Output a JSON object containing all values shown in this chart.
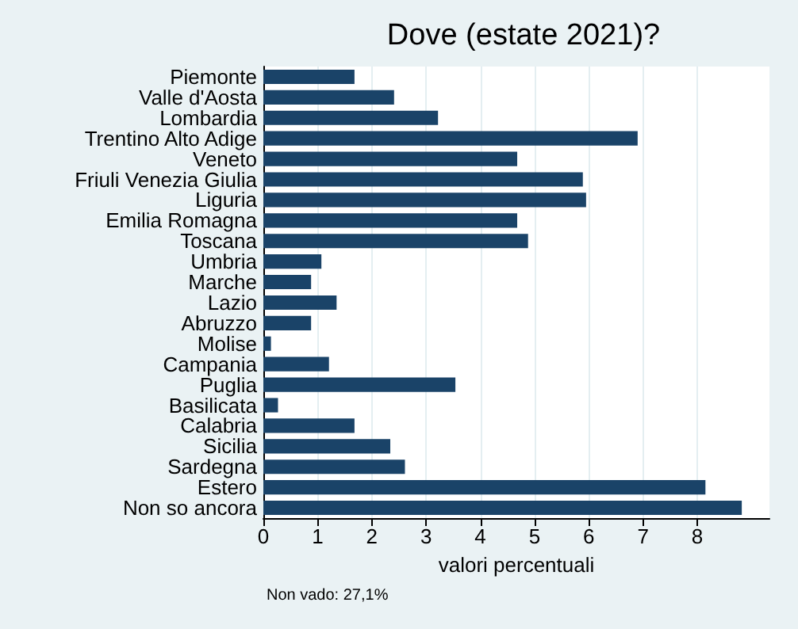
{
  "chart_data": {
    "type": "bar",
    "orientation": "horizontal",
    "title": "Dove (estate 2021)?",
    "xlabel": "valori percentuali",
    "categories": [
      "Piemonte",
      "Valle d'Aosta",
      "Lombardia",
      "Trentino Alto Adige",
      "Veneto",
      "Friuli Venezia Giulia",
      "Liguria",
      "Emilia Romagna",
      "Toscana",
      "Umbria",
      "Marche",
      "Lazio",
      "Abruzzo",
      "Molise",
      "Campania",
      "Puglia",
      "Basilicata",
      "Calabria",
      "Sicilia",
      "Sardegna",
      "Estero",
      "Non so ancora"
    ],
    "values": [
      1.68,
      2.41,
      3.22,
      6.9,
      4.68,
      5.89,
      5.95,
      4.68,
      4.88,
      1.07,
      0.88,
      1.35,
      0.88,
      0.14,
      1.21,
      3.54,
      0.27,
      1.68,
      2.34,
      2.61,
      8.15,
      8.82
    ],
    "color": "#1a4368",
    "xlim": [
      0,
      9.33
    ],
    "xticks": [
      0,
      1,
      2,
      3,
      4,
      5,
      6,
      7,
      8
    ],
    "grid": "x",
    "annotations": [
      "Non vado: 27,1%"
    ]
  }
}
